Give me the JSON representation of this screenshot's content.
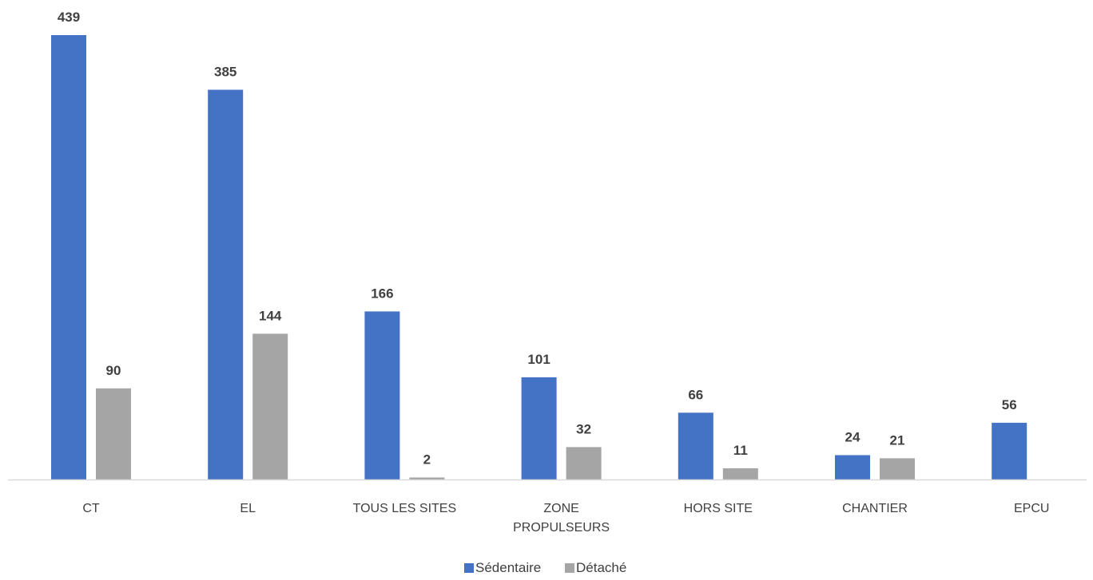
{
  "chart_data": {
    "type": "bar",
    "categories": [
      "CT",
      "EL",
      "TOUS LES SITES",
      "ZONE PROPULSEURS",
      "HORS SITE",
      "CHANTIER",
      "EPCU"
    ],
    "series": [
      {
        "name": "Sédentaire",
        "color": "#4472C4",
        "values": [
          439,
          385,
          166,
          101,
          66,
          24,
          56
        ]
      },
      {
        "name": "Détaché",
        "color": "#A5A5A5",
        "values": [
          90,
          144,
          2,
          32,
          11,
          21,
          null
        ]
      }
    ],
    "value_labels": [
      [
        "439",
        "385",
        "166",
        "101",
        "66",
        "24",
        "56"
      ],
      [
        "90",
        "144",
        "2",
        "32",
        "11",
        "21",
        ""
      ]
    ],
    "title": "",
    "xlabel": "",
    "ylabel": "",
    "ylim": [
      0,
      439
    ],
    "grid": false,
    "legend": "bottom-center",
    "axis_color": "#D9D9D9"
  }
}
